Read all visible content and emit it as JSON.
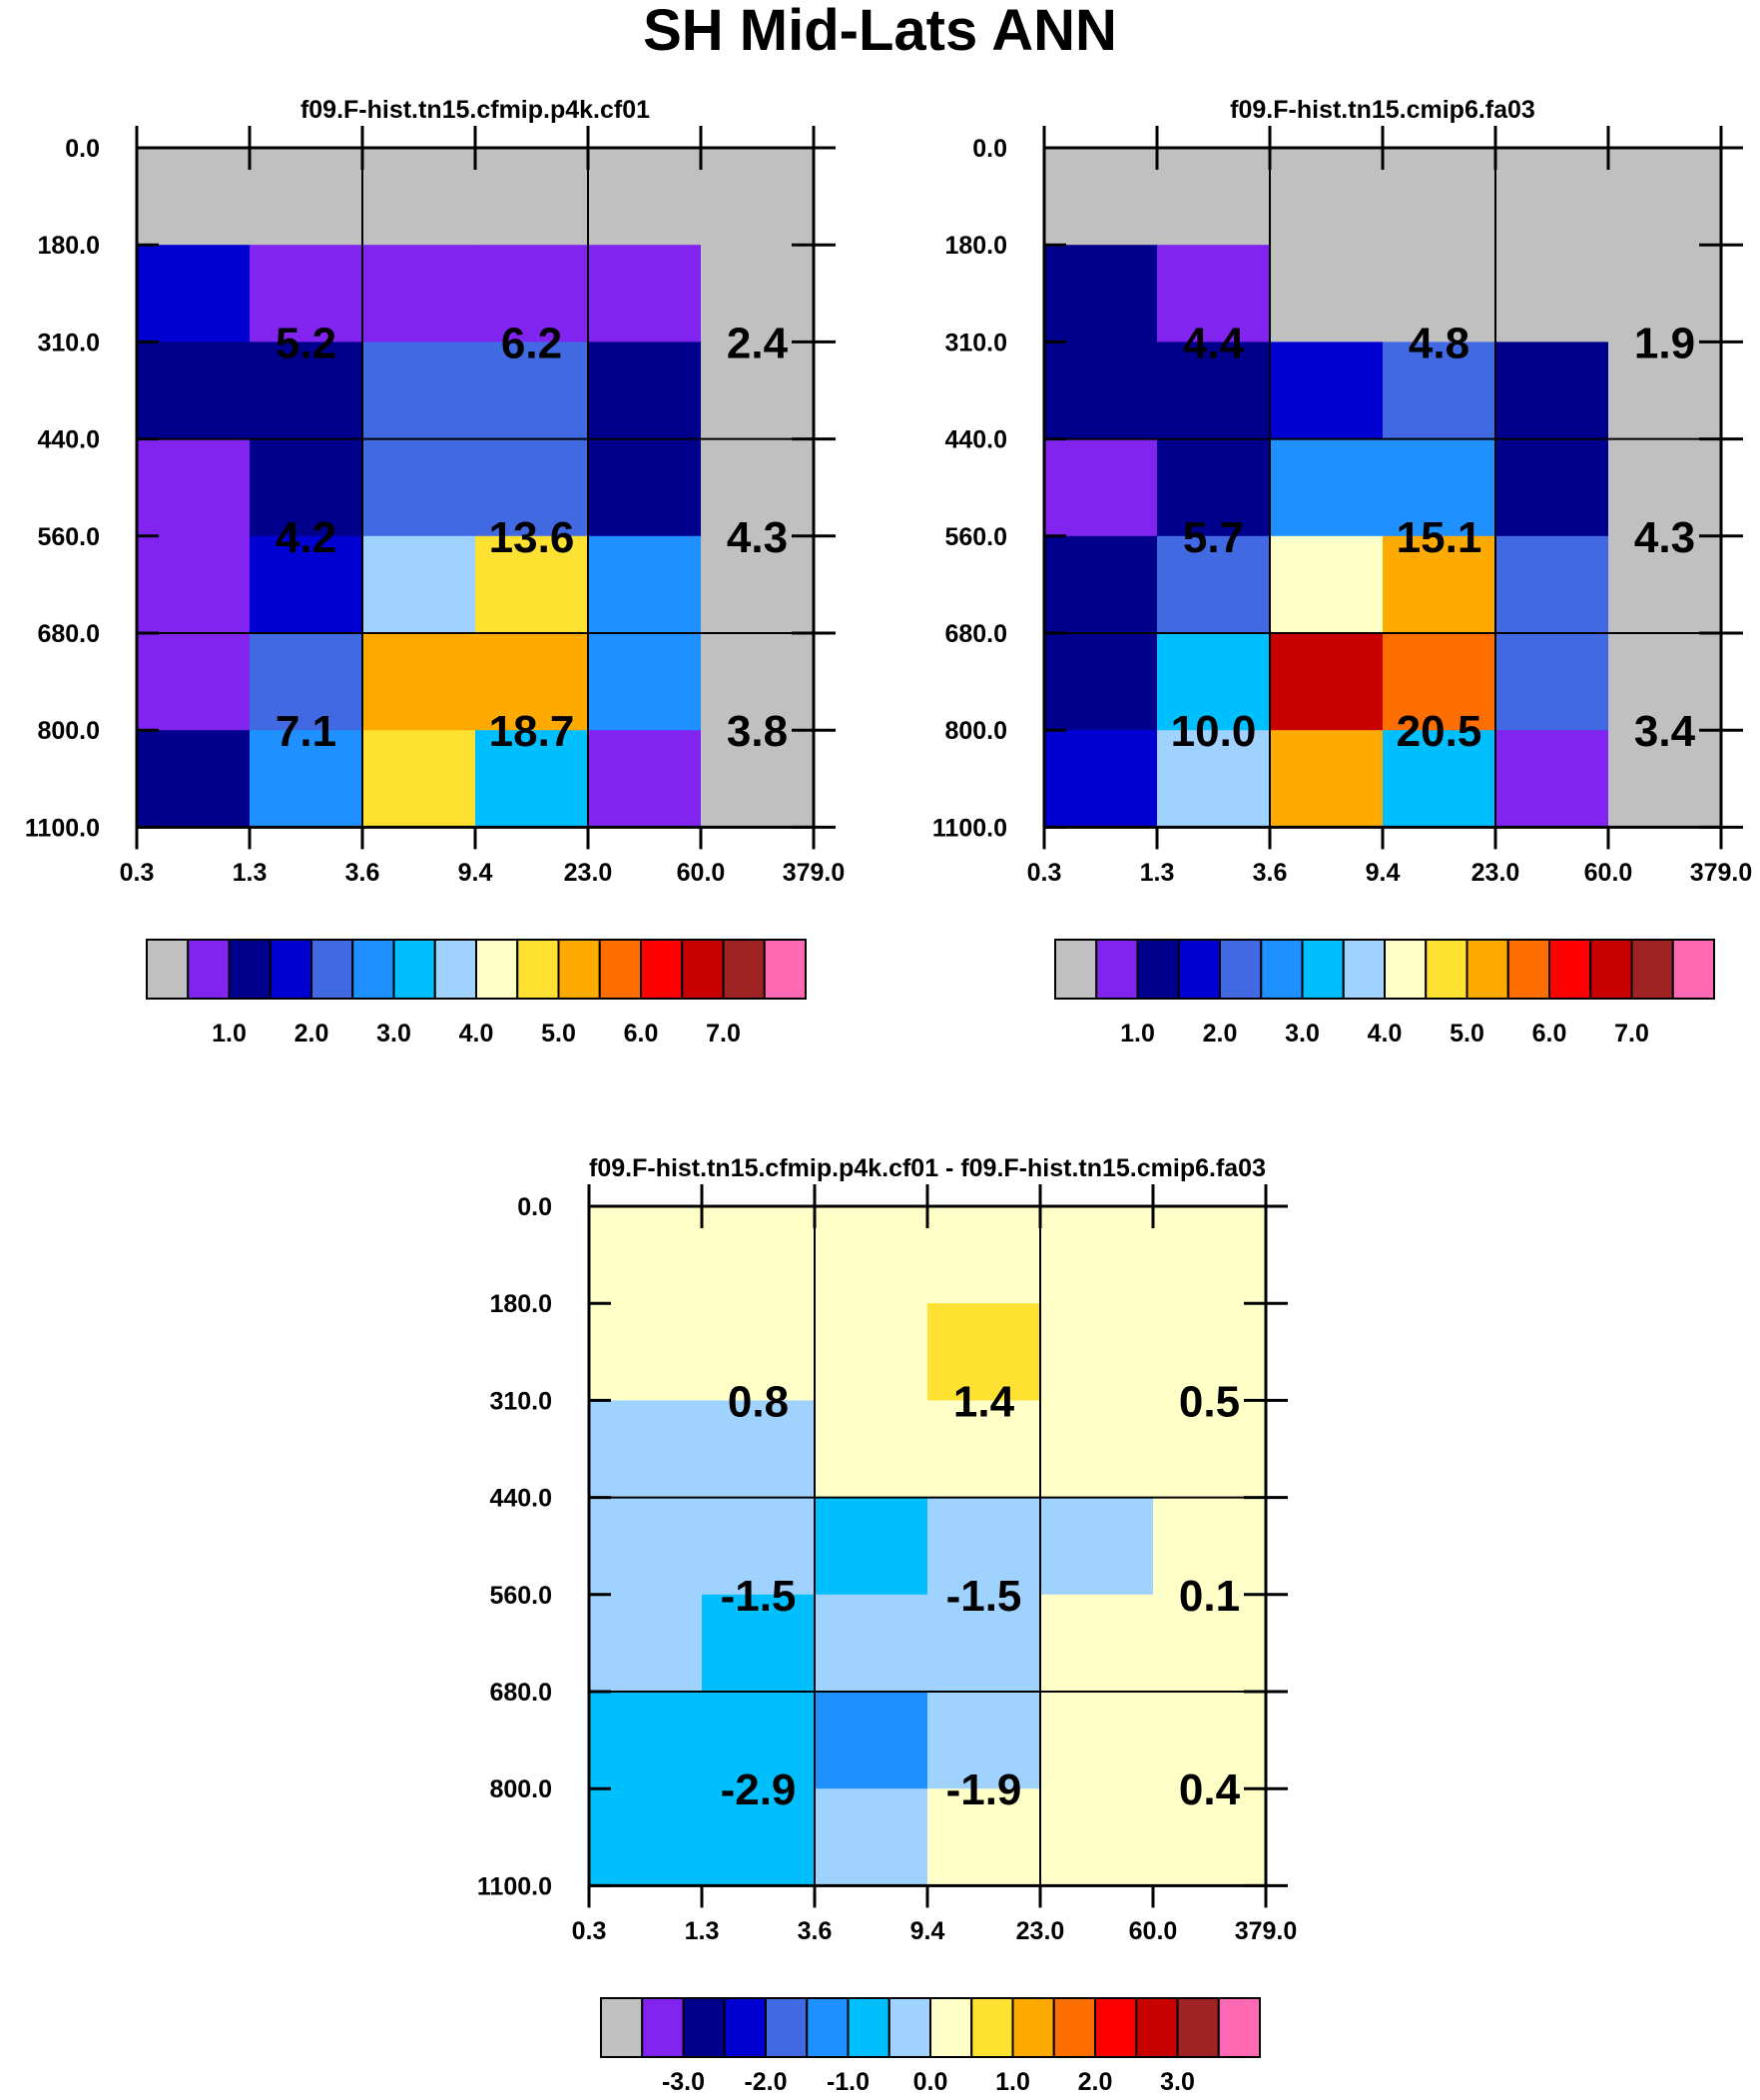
{
  "page": {
    "title": "SH Mid-Lats ANN"
  },
  "colors": {
    "bins": [
      "#c0c0c0",
      "#8224f0",
      "#00008c",
      "#0000d2",
      "#4169e1",
      "#1e90ff",
      "#00bfff",
      "#a0d2ff",
      "#ffffc8",
      "#ffe132",
      "#ffaa00",
      "#ff6e00",
      "#ff0000",
      "#c80000",
      "#a02323",
      "#ff69b4"
    ],
    "grid": "#000000"
  },
  "chart_data": [
    {
      "type": "heatmap",
      "title": "f09.F-hist.tn15.cfmip.p4k.cf01",
      "x_ticks": [
        "0.3",
        "1.3",
        "3.6",
        "9.4",
        "23.0",
        "60.0",
        "379.0"
      ],
      "y_ticks": [
        "0.0",
        "180.0",
        "310.0",
        "440.0",
        "560.0",
        "680.0",
        "800.0",
        "1100.0"
      ],
      "cells": [
        [
          0,
          0,
          0,
          0,
          0,
          0
        ],
        [
          3,
          1,
          1,
          1,
          1,
          0
        ],
        [
          2,
          2,
          4,
          4,
          2,
          0
        ],
        [
          1,
          2,
          4,
          4,
          2,
          0
        ],
        [
          1,
          3,
          7,
          9,
          5,
          0
        ],
        [
          1,
          4,
          10,
          10,
          5,
          0
        ],
        [
          2,
          5,
          9,
          6,
          1,
          0
        ]
      ],
      "labels": [
        {
          "text": "5.2",
          "col": 1,
          "row": 2
        },
        {
          "text": "6.2",
          "col": 3,
          "row": 2
        },
        {
          "text": "2.4",
          "col": 5,
          "row": 2
        },
        {
          "text": "4.2",
          "col": 1,
          "row": 4
        },
        {
          "text": "13.6",
          "col": 3,
          "row": 4
        },
        {
          "text": "4.3",
          "col": 5,
          "row": 4
        },
        {
          "text": "7.1",
          "col": 1,
          "row": 6
        },
        {
          "text": "18.7",
          "col": 3,
          "row": 6
        },
        {
          "text": "3.8",
          "col": 5,
          "row": 6
        }
      ],
      "colorbar": {
        "labels": [
          "1.0",
          "2.0",
          "3.0",
          "4.0",
          "5.0",
          "6.0",
          "7.0"
        ]
      }
    },
    {
      "type": "heatmap",
      "title": "f09.F-hist.tn15.cmip6.fa03",
      "x_ticks": [
        "0.3",
        "1.3",
        "3.6",
        "9.4",
        "23.0",
        "60.0",
        "379.0"
      ],
      "y_ticks": [
        "0.0",
        "180.0",
        "310.0",
        "440.0",
        "560.0",
        "680.0",
        "800.0",
        "1100.0"
      ],
      "cells": [
        [
          0,
          0,
          0,
          0,
          0,
          0
        ],
        [
          2,
          1,
          0,
          0,
          0,
          0
        ],
        [
          2,
          2,
          3,
          4,
          2,
          0
        ],
        [
          1,
          2,
          5,
          5,
          2,
          0
        ],
        [
          2,
          4,
          8,
          10,
          4,
          0
        ],
        [
          2,
          6,
          13,
          11,
          4,
          0
        ],
        [
          3,
          7,
          10,
          6,
          1,
          0
        ]
      ],
      "labels": [
        {
          "text": "4.4",
          "col": 1,
          "row": 2
        },
        {
          "text": "4.8",
          "col": 3,
          "row": 2
        },
        {
          "text": "1.9",
          "col": 5,
          "row": 2
        },
        {
          "text": "5.7",
          "col": 1,
          "row": 4
        },
        {
          "text": "15.1",
          "col": 3,
          "row": 4
        },
        {
          "text": "4.3",
          "col": 5,
          "row": 4
        },
        {
          "text": "10.0",
          "col": 1,
          "row": 6
        },
        {
          "text": "20.5",
          "col": 3,
          "row": 6
        },
        {
          "text": "3.4",
          "col": 5,
          "row": 6
        }
      ],
      "colorbar": {
        "labels": [
          "1.0",
          "2.0",
          "3.0",
          "4.0",
          "5.0",
          "6.0",
          "7.0"
        ]
      }
    },
    {
      "type": "heatmap",
      "title": "f09.F-hist.tn15.cfmip.p4k.cf01 - f09.F-hist.tn15.cmip6.fa03",
      "x_ticks": [
        "0.3",
        "1.3",
        "3.6",
        "9.4",
        "23.0",
        "60.0",
        "379.0"
      ],
      "y_ticks": [
        "0.0",
        "180.0",
        "310.0",
        "440.0",
        "560.0",
        "680.0",
        "800.0",
        "1100.0"
      ],
      "cells": [
        [
          8,
          8,
          8,
          8,
          8,
          8
        ],
        [
          8,
          8,
          8,
          9,
          8,
          8
        ],
        [
          7,
          7,
          8,
          8,
          8,
          8
        ],
        [
          7,
          7,
          6,
          7,
          7,
          8
        ],
        [
          7,
          6,
          7,
          7,
          8,
          8
        ],
        [
          6,
          6,
          5,
          7,
          8,
          8
        ],
        [
          6,
          6,
          7,
          8,
          8,
          8
        ]
      ],
      "labels": [
        {
          "text": "0.8",
          "col": 1,
          "row": 2
        },
        {
          "text": "1.4",
          "col": 3,
          "row": 2
        },
        {
          "text": "0.5",
          "col": 5,
          "row": 2
        },
        {
          "text": "-1.5",
          "col": 1,
          "row": 4
        },
        {
          "text": "-1.5",
          "col": 3,
          "row": 4
        },
        {
          "text": "0.1",
          "col": 5,
          "row": 4
        },
        {
          "text": "-2.9",
          "col": 1,
          "row": 6
        },
        {
          "text": "-1.9",
          "col": 3,
          "row": 6
        },
        {
          "text": "0.4",
          "col": 5,
          "row": 6
        }
      ],
      "colorbar": {
        "labels": [
          "-3.0",
          "-2.0",
          "-1.0",
          "0.0",
          "1.0",
          "2.0",
          "3.0"
        ]
      }
    }
  ]
}
